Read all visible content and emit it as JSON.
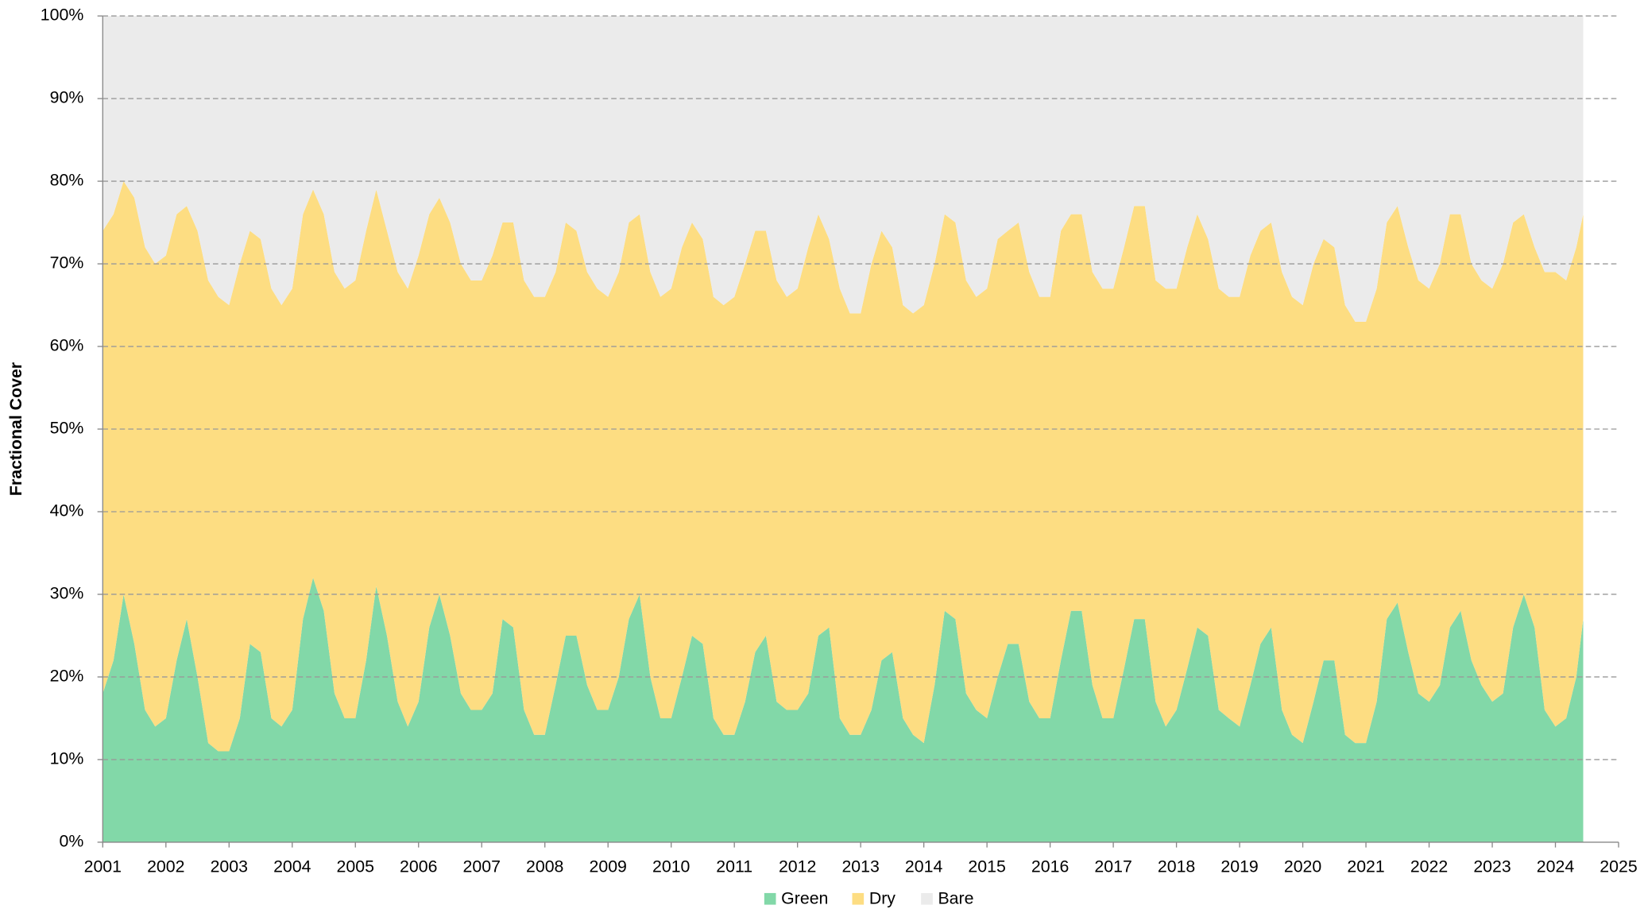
{
  "chart_data": {
    "type": "stacked_area",
    "y_label": "Fractional Cover",
    "x": [
      2001,
      2001.17,
      2001.33,
      2001.5,
      2001.67,
      2001.83,
      2002,
      2002.17,
      2002.33,
      2002.5,
      2002.67,
      2002.83,
      2003,
      2003.17,
      2003.33,
      2003.5,
      2003.67,
      2003.83,
      2004,
      2004.17,
      2004.33,
      2004.5,
      2004.67,
      2004.83,
      2005,
      2005.17,
      2005.33,
      2005.5,
      2005.67,
      2005.83,
      2006,
      2006.17,
      2006.33,
      2006.5,
      2006.67,
      2006.83,
      2007,
      2007.17,
      2007.33,
      2007.5,
      2007.67,
      2007.83,
      2008,
      2008.17,
      2008.33,
      2008.5,
      2008.67,
      2008.83,
      2009,
      2009.17,
      2009.33,
      2009.5,
      2009.67,
      2009.83,
      2010,
      2010.17,
      2010.33,
      2010.5,
      2010.67,
      2010.83,
      2011,
      2011.17,
      2011.33,
      2011.5,
      2011.67,
      2011.83,
      2012,
      2012.17,
      2012.33,
      2012.5,
      2012.67,
      2012.83,
      2013,
      2013.17,
      2013.33,
      2013.5,
      2013.67,
      2013.83,
      2014,
      2014.17,
      2014.33,
      2014.5,
      2014.67,
      2014.83,
      2015,
      2015.17,
      2015.33,
      2015.5,
      2015.67,
      2015.83,
      2016,
      2016.17,
      2016.33,
      2016.5,
      2016.67,
      2016.83,
      2017,
      2017.17,
      2017.33,
      2017.5,
      2017.67,
      2017.83,
      2018,
      2018.17,
      2018.33,
      2018.5,
      2018.67,
      2018.83,
      2019,
      2019.17,
      2019.33,
      2019.5,
      2019.67,
      2019.83,
      2020,
      2020.17,
      2020.33,
      2020.5,
      2020.67,
      2020.83,
      2021,
      2021.17,
      2021.33,
      2021.5,
      2021.67,
      2021.83,
      2022,
      2022.17,
      2022.33,
      2022.5,
      2022.67,
      2022.83,
      2023,
      2023.17,
      2023.33,
      2023.5,
      2023.67,
      2023.83,
      2024,
      2024.17,
      2024.33,
      2024.44
    ],
    "series": [
      {
        "name": "Green",
        "color": "#82d8a8",
        "values": [
          18,
          22,
          30,
          24,
          16,
          14,
          15,
          22,
          27,
          20,
          12,
          11,
          11,
          15,
          24,
          23,
          15,
          14,
          16,
          27,
          32,
          28,
          18,
          15,
          15,
          22,
          31,
          25,
          17,
          14,
          17,
          26,
          30,
          25,
          18,
          16,
          16,
          18,
          27,
          26,
          16,
          13,
          13,
          19,
          25,
          25,
          19,
          16,
          16,
          20,
          27,
          30,
          20,
          15,
          15,
          20,
          25,
          24,
          15,
          13,
          13,
          17,
          23,
          25,
          17,
          16,
          16,
          18,
          25,
          26,
          15,
          13,
          13,
          16,
          22,
          23,
          15,
          13,
          12,
          19,
          28,
          27,
          18,
          16,
          15,
          20,
          24,
          24,
          17,
          15,
          15,
          22,
          28,
          28,
          19,
          15,
          15,
          21,
          27,
          27,
          17,
          14,
          16,
          21,
          26,
          25,
          16,
          15,
          14,
          19,
          24,
          26,
          16,
          13,
          12,
          17,
          22,
          22,
          13,
          12,
          12,
          17,
          27,
          29,
          23,
          18,
          17,
          19,
          26,
          28,
          22,
          19,
          17,
          18,
          26,
          30,
          26,
          16,
          14,
          15,
          20,
          27
        ]
      },
      {
        "name": "Dry",
        "color": "#fddd82",
        "values": [
          56,
          54,
          50,
          54,
          56,
          56,
          56,
          54,
          50,
          54,
          56,
          55,
          54,
          55,
          50,
          50,
          52,
          51,
          51,
          49,
          47,
          48,
          51,
          52,
          53,
          52,
          48,
          49,
          52,
          53,
          54,
          50,
          48,
          50,
          52,
          52,
          52,
          53,
          48,
          49,
          52,
          53,
          53,
          50,
          50,
          49,
          50,
          51,
          50,
          49,
          48,
          46,
          49,
          51,
          52,
          52,
          50,
          49,
          51,
          52,
          53,
          53,
          51,
          49,
          51,
          50,
          51,
          54,
          51,
          47,
          52,
          51,
          51,
          54,
          52,
          49,
          50,
          51,
          53,
          51,
          48,
          48,
          50,
          50,
          52,
          53,
          50,
          51,
          52,
          51,
          51,
          52,
          48,
          48,
          50,
          52,
          52,
          51,
          50,
          50,
          51,
          53,
          51,
          51,
          50,
          48,
          51,
          51,
          52,
          52,
          50,
          49,
          53,
          53,
          53,
          53,
          51,
          50,
          52,
          51,
          51,
          50,
          48,
          48,
          49,
          50,
          50,
          51,
          50,
          48,
          48,
          49,
          50,
          52,
          49,
          46,
          46,
          53,
          55,
          53,
          52,
          49
        ]
      },
      {
        "name": "Bare",
        "color": "#ebebeb",
        "values": [
          26,
          24,
          20,
          22,
          28,
          30,
          29,
          24,
          23,
          26,
          32,
          34,
          35,
          30,
          26,
          27,
          33,
          35,
          33,
          24,
          21,
          24,
          31,
          33,
          32,
          26,
          21,
          26,
          31,
          33,
          29,
          24,
          22,
          25,
          30,
          32,
          32,
          29,
          25,
          25,
          32,
          34,
          34,
          31,
          25,
          26,
          31,
          33,
          34,
          31,
          25,
          24,
          31,
          34,
          33,
          28,
          25,
          27,
          34,
          35,
          34,
          30,
          26,
          26,
          32,
          34,
          33,
          28,
          24,
          27,
          33,
          36,
          36,
          30,
          26,
          28,
          35,
          36,
          35,
          30,
          24,
          25,
          32,
          34,
          33,
          27,
          26,
          25,
          31,
          34,
          34,
          26,
          24,
          24,
          31,
          33,
          33,
          28,
          23,
          23,
          32,
          33,
          33,
          28,
          24,
          27,
          33,
          34,
          34,
          29,
          26,
          25,
          31,
          34,
          35,
          30,
          27,
          28,
          35,
          37,
          37,
          33,
          25,
          23,
          28,
          32,
          33,
          30,
          24,
          24,
          30,
          32,
          33,
          30,
          25,
          24,
          28,
          31,
          31,
          32,
          28,
          24
        ]
      }
    ],
    "xlim": [
      2001,
      2025
    ],
    "xticks": [
      2001,
      2002,
      2003,
      2004,
      2005,
      2006,
      2007,
      2008,
      2009,
      2010,
      2011,
      2012,
      2013,
      2014,
      2015,
      2016,
      2017,
      2018,
      2019,
      2020,
      2021,
      2022,
      2023,
      2024,
      2025
    ],
    "ylim": [
      0,
      100
    ],
    "yticks": [
      {
        "value": 0,
        "label": "0%"
      },
      {
        "value": 10,
        "label": "10%"
      },
      {
        "value": 20,
        "label": "20%"
      },
      {
        "value": 30,
        "label": "30%"
      },
      {
        "value": 40,
        "label": "40%"
      },
      {
        "value": 50,
        "label": "50%"
      },
      {
        "value": 60,
        "label": "60%"
      },
      {
        "value": 70,
        "label": "70%"
      },
      {
        "value": 80,
        "label": "80%"
      },
      {
        "value": 90,
        "label": "90%"
      },
      {
        "value": 100,
        "label": "100%"
      }
    ],
    "grid": true,
    "legend": "bottom"
  }
}
